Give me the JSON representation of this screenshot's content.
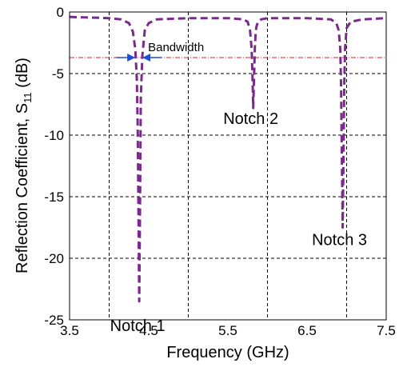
{
  "chart_data": {
    "type": "line",
    "title": "",
    "xlabel": "Frequency (GHz)",
    "ylabel_main": "Reflection Coefficient, S",
    "ylabel_sub": "11",
    "ylabel_unit": " (dB)",
    "xlim": [
      3.5,
      7.5
    ],
    "ylim": [
      -25,
      0
    ],
    "x_ticks": [
      3.5,
      4.5,
      5.5,
      6.5,
      7.5
    ],
    "x_tick_labels": [
      "3.5",
      "4.5",
      "5.5",
      "6.5",
      "7.5"
    ],
    "y_ticks": [
      0,
      -5,
      -10,
      -15,
      -20,
      -25
    ],
    "y_tick_labels": [
      "0",
      "-5",
      "-10",
      "-15",
      "-20",
      "-25"
    ],
    "grid": true,
    "grid_x": [
      4.0,
      5.0,
      6.0,
      7.0
    ],
    "grid_y": [
      -5,
      -10,
      -15,
      -20
    ],
    "reference_line_y": -3.7,
    "series": [
      {
        "color": "#7a2a8a",
        "style": "dashed",
        "x": [
          3.5,
          4.0,
          4.15,
          4.25,
          4.3,
          4.33,
          4.35,
          4.36,
          4.37,
          4.38,
          4.39,
          4.4,
          4.42,
          4.45,
          4.5,
          4.6,
          5.0,
          5.5,
          5.7,
          5.75,
          5.78,
          5.8,
          5.81,
          5.82,
          5.83,
          5.84,
          5.85,
          5.86,
          5.88,
          5.92,
          6.0,
          6.5,
          6.8,
          6.87,
          6.9,
          6.92,
          6.93,
          6.94,
          6.95,
          6.96,
          6.97,
          6.98,
          7.0,
          7.05,
          7.2,
          7.5
        ],
        "y": [
          -0.4,
          -0.5,
          -0.6,
          -0.9,
          -1.6,
          -3.0,
          -5.5,
          -9.0,
          -16.0,
          -23.5,
          -16.0,
          -7.0,
          -3.5,
          -1.5,
          -0.9,
          -0.6,
          -0.5,
          -0.5,
          -0.6,
          -0.8,
          -1.5,
          -3.0,
          -5.0,
          -7.8,
          -5.5,
          -3.0,
          -1.8,
          -1.2,
          -0.8,
          -0.6,
          -0.5,
          -0.5,
          -0.6,
          -0.9,
          -1.5,
          -3.0,
          -6.0,
          -12.0,
          -17.5,
          -12.0,
          -6.0,
          -3.0,
          -1.3,
          -0.8,
          -0.6,
          -0.5
        ]
      }
    ],
    "annotations": [
      {
        "text": "Notch 1",
        "x": 4.38,
        "y": -23.5
      },
      {
        "text": "Notch 2",
        "x": 5.83,
        "y": -7.8
      },
      {
        "text": "Notch 3",
        "x": 6.95,
        "y": -17.5
      },
      {
        "text": "Bandwidth",
        "x": 4.38,
        "y": -3.7
      }
    ],
    "colors": {
      "series": "#7a2a8a",
      "reference_line": "#e02020",
      "arrows": "#1b4fd8",
      "grid": "#000000"
    }
  }
}
